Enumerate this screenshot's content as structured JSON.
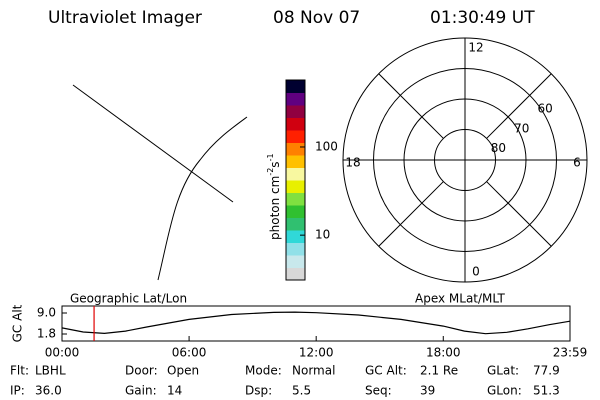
{
  "header": {
    "instrument": "Ultraviolet Imager",
    "date": "08 Nov 07",
    "time": "01:30:49 UT"
  },
  "colorbar": {
    "label": {
      "main": "photon cm",
      "exp1": "-2",
      "unit2": "s",
      "exp2": "-1"
    },
    "scale": "log",
    "clim": [
      3.1,
      575
    ],
    "ticks": [
      10,
      100
    ],
    "colors": [
      "#d8d8d8",
      "#c8e8ec",
      "#90e0e8",
      "#30d8d8",
      "#30c070",
      "#30c030",
      "#80e040",
      "#e8f000",
      "#f8f8a0",
      "#ffc000",
      "#ff8000",
      "#ff2000",
      "#d00010",
      "#900040",
      "#600080",
      "#000030"
    ]
  },
  "polar": {
    "rlim": [
      90,
      50
    ],
    "rings": [
      80,
      70,
      60
    ],
    "mlt_ticks": [
      12,
      18,
      6,
      0
    ]
  },
  "altitude": {
    "ylabel": "GC Alt",
    "left_title": "Geographic Lat/Lon",
    "right_title": "Apex MLat/MLT",
    "xlim": [
      0,
      23.983
    ],
    "ylim": [
      -0.6,
      11.4
    ],
    "xticks": [
      {
        "value": 0,
        "label": "00:00"
      },
      {
        "value": 6,
        "label": "06:00"
      },
      {
        "value": 12,
        "label": "12:00"
      },
      {
        "value": 18,
        "label": "18:00"
      },
      {
        "value": 23.983,
        "label": "23:59"
      }
    ],
    "yticks": [
      {
        "value": 9.0,
        "label": "9.0"
      },
      {
        "value": 1.8,
        "label": "1.8"
      }
    ],
    "x": [
      0,
      1,
      2,
      3,
      4,
      6,
      8,
      10,
      11,
      12,
      14,
      16,
      18,
      19,
      20,
      21,
      22,
      23,
      23.983
    ],
    "values": [
      3.9,
      2.5,
      2.0,
      2.8,
      4.2,
      6.8,
      8.5,
      9.2,
      9.3,
      9.1,
      8.3,
      6.8,
      4.5,
      2.8,
      1.9,
      2.4,
      3.6,
      5.0,
      6.2
    ],
    "current_hour": 1.514,
    "current_color": "#e00000"
  },
  "footer": {
    "rows": [
      [
        {
          "label": "Flt:",
          "value": "LBHL"
        },
        {
          "label": "Door:",
          "value": "Open"
        },
        {
          "label": "Mode:",
          "value": "Normal"
        },
        {
          "label": "GC Alt:",
          "value": "2.1 Re"
        },
        {
          "label": "GLat:",
          "value": "77.9"
        }
      ],
      [
        {
          "label": "IP:",
          "value": "36.0"
        },
        {
          "label": "Gain:",
          "value": "14"
        },
        {
          "label": "Dsp:",
          "value": "5.5"
        },
        {
          "label": "Seq:",
          "value": "39"
        },
        {
          "label": "GLon:",
          "value": "51.3"
        }
      ]
    ]
  }
}
